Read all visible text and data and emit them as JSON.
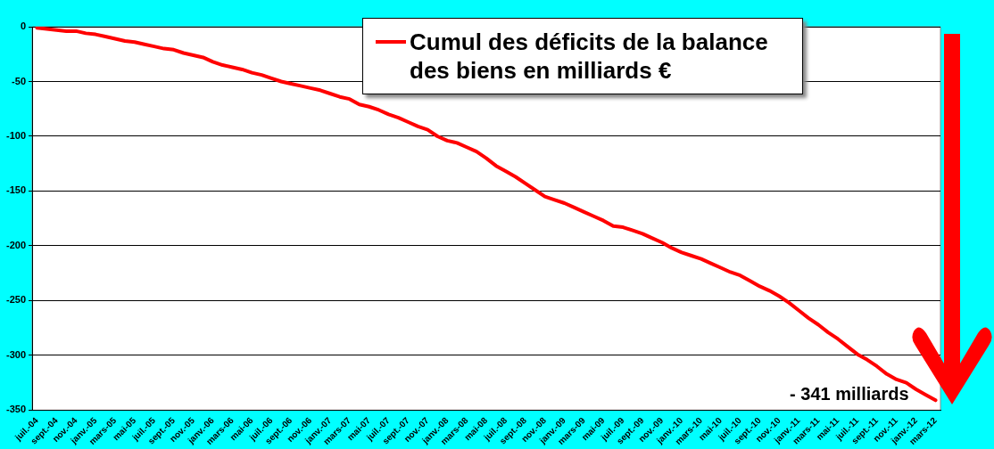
{
  "chart_data": {
    "type": "line",
    "categories": [
      "juil.-04",
      null,
      "sept.-04",
      null,
      "nov.-04",
      null,
      "janv.-05",
      null,
      "mars-05",
      null,
      "mai-05",
      null,
      "juil.-05",
      null,
      "sept.-05",
      null,
      "nov.-05",
      null,
      "janv.-06",
      null,
      "mars-06",
      null,
      "mai-06",
      null,
      "juil.-06",
      null,
      "sept.-06",
      null,
      "nov.-06",
      null,
      "janv.-07",
      null,
      "mars-07",
      null,
      "mai-07",
      null,
      "juil.-07",
      null,
      "sept.-07",
      null,
      "nov.-07",
      null,
      "janv.-08",
      null,
      "mars-08",
      null,
      "mai-08",
      null,
      "juil.-08",
      null,
      "sept.-08",
      null,
      "nov.-08",
      null,
      "janv.-09",
      null,
      "mars-09",
      null,
      "mai-09",
      null,
      "juil.-09",
      null,
      "sept.-09",
      null,
      "nov.-09",
      null,
      "janv.-10",
      null,
      "mars-10",
      null,
      "mai-10",
      null,
      "juil.-10",
      null,
      "sept.-10",
      null,
      "nov.-10",
      null,
      "janv.-11",
      null,
      "mars-11",
      null,
      "mai-11",
      null,
      "juil.-11",
      null,
      "sept.-11",
      null,
      "nov.-11",
      null,
      "janv.-12",
      null,
      "mars-12"
    ],
    "series": [
      {
        "name": "Cumul des déficits de la balance des biens en milliards €",
        "color": "#ff0000",
        "values": [
          -1,
          -2,
          -3,
          -4,
          -4,
          -6,
          -7,
          -9,
          -11,
          -13,
          -14,
          -16,
          -18,
          -20,
          -21,
          -24,
          -26,
          -28,
          -32,
          -35,
          -37,
          -39,
          -42,
          -44,
          -47,
          -50,
          -52,
          -54,
          -56,
          -58,
          -61,
          -64,
          -66,
          -71,
          -73,
          -76,
          -80,
          -83,
          -87,
          -91,
          -94,
          -100,
          -104,
          -106,
          -110,
          -114,
          -120,
          -127,
          -132,
          -137,
          -143,
          -149,
          -155,
          -158,
          -161,
          -165,
          -169,
          -173,
          -177,
          -182,
          -183,
          -186,
          -189,
          -193,
          -197,
          -202,
          -206,
          -209,
          -212,
          -216,
          -220,
          -224,
          -227,
          -232,
          -237,
          -241,
          -246,
          -252,
          -259,
          -266,
          -272,
          -279,
          -285,
          -292,
          -299,
          -304,
          -310,
          -317,
          -322,
          -325,
          -331,
          -336,
          -341
        ]
      }
    ],
    "ylim": [
      -350,
      0
    ],
    "yticks": [
      -350,
      -300,
      -250,
      -200,
      -150,
      -100,
      -50,
      0
    ],
    "grid": "y",
    "legend": "top right",
    "marker": "none",
    "line_style": "solid",
    "annotations": [
      {
        "text": "- 341 milliards",
        "x": "mars-12",
        "y": -341
      }
    ]
  }
}
